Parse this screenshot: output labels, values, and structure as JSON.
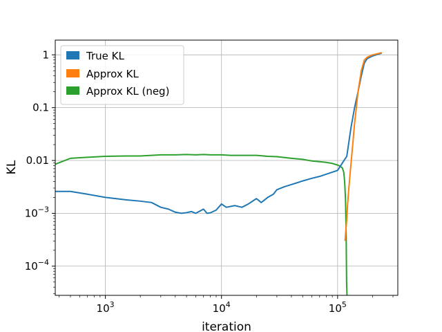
{
  "chart_data": {
    "type": "line",
    "xlabel": "iteration",
    "ylabel": "KL",
    "x_scale": "log",
    "y_scale": "log",
    "xlim": [
      370,
      330000
    ],
    "ylim": [
      2.8e-05,
      1.9
    ],
    "grid": true,
    "legend_position": "top-left",
    "x_ticks": [
      {
        "value": 1000,
        "base": "10",
        "exp": "3"
      },
      {
        "value": 10000,
        "base": "10",
        "exp": "4"
      },
      {
        "value": 100000,
        "base": "10",
        "exp": "5"
      }
    ],
    "y_ticks": [
      {
        "value": 1,
        "text": "1"
      },
      {
        "value": 0.1,
        "text": "0.1"
      },
      {
        "value": 0.01,
        "text": "0.01"
      },
      {
        "value": 0.001,
        "base": "10",
        "exp": "−3"
      },
      {
        "value": 0.0001,
        "base": "10",
        "exp": "−4"
      }
    ],
    "series": [
      {
        "name": "True KL",
        "color": "#1f77b4",
        "x": [
          370,
          500,
          700,
          1000,
          1500,
          2000,
          2500,
          3000,
          3500,
          4000,
          4500,
          5000,
          5500,
          6000,
          6500,
          7000,
          7500,
          8000,
          9000,
          10000,
          11000,
          13000,
          15000,
          17000,
          20000,
          22000,
          25000,
          28000,
          30000,
          35000,
          40000,
          45000,
          50000,
          60000,
          70000,
          80000,
          90000,
          100000,
          110000,
          120000,
          130000,
          140000,
          150000,
          160000,
          170000,
          180000,
          200000,
          220000,
          240000
        ],
        "y": [
          0.0026,
          0.0026,
          0.0023,
          0.002,
          0.0018,
          0.0017,
          0.0016,
          0.0013,
          0.0012,
          0.00105,
          0.001,
          0.00103,
          0.00108,
          0.001,
          0.0011,
          0.0012,
          0.001,
          0.00102,
          0.00115,
          0.0015,
          0.0013,
          0.0014,
          0.0013,
          0.0015,
          0.0019,
          0.0016,
          0.002,
          0.0023,
          0.0028,
          0.0032,
          0.0035,
          0.0038,
          0.0041,
          0.0046,
          0.005,
          0.0055,
          0.006,
          0.0065,
          0.009,
          0.012,
          0.04,
          0.1,
          0.2,
          0.4,
          0.7,
          0.85,
          0.95,
          1.02,
          1.08
        ]
      },
      {
        "name": "Approx KL",
        "color": "#ff7f0e",
        "x": [
          116000,
          118000,
          120000,
          122000,
          125000,
          130000,
          135000,
          140000,
          145000,
          150000,
          160000,
          170000,
          180000,
          200000,
          220000,
          240000
        ],
        "y": [
          0.0003,
          0.0005,
          0.0008,
          0.0015,
          0.003,
          0.008,
          0.02,
          0.05,
          0.1,
          0.2,
          0.5,
          0.8,
          0.9,
          1.0,
          1.05,
          1.1
        ]
      },
      {
        "name": "Approx KL (neg)",
        "color": "#2ca02c",
        "x": [
          370,
          500,
          700,
          1000,
          1500,
          2000,
          3000,
          4000,
          5000,
          6000,
          7000,
          8000,
          10000,
          12000,
          15000,
          20000,
          25000,
          30000,
          40000,
          50000,
          60000,
          70000,
          80000,
          90000,
          100000,
          105000,
          110000,
          113000,
          115000,
          117000,
          118500,
          119500,
          120500
        ],
        "y": [
          0.0085,
          0.011,
          0.0115,
          0.012,
          0.0122,
          0.0122,
          0.0128,
          0.0128,
          0.013,
          0.0128,
          0.013,
          0.0128,
          0.0128,
          0.0125,
          0.0125,
          0.0125,
          0.012,
          0.0118,
          0.011,
          0.0105,
          0.0098,
          0.0095,
          0.0092,
          0.0088,
          0.0082,
          0.0078,
          0.0072,
          0.006,
          0.004,
          0.0018,
          0.0004,
          5e-05,
          2.8e-05
        ]
      }
    ]
  }
}
